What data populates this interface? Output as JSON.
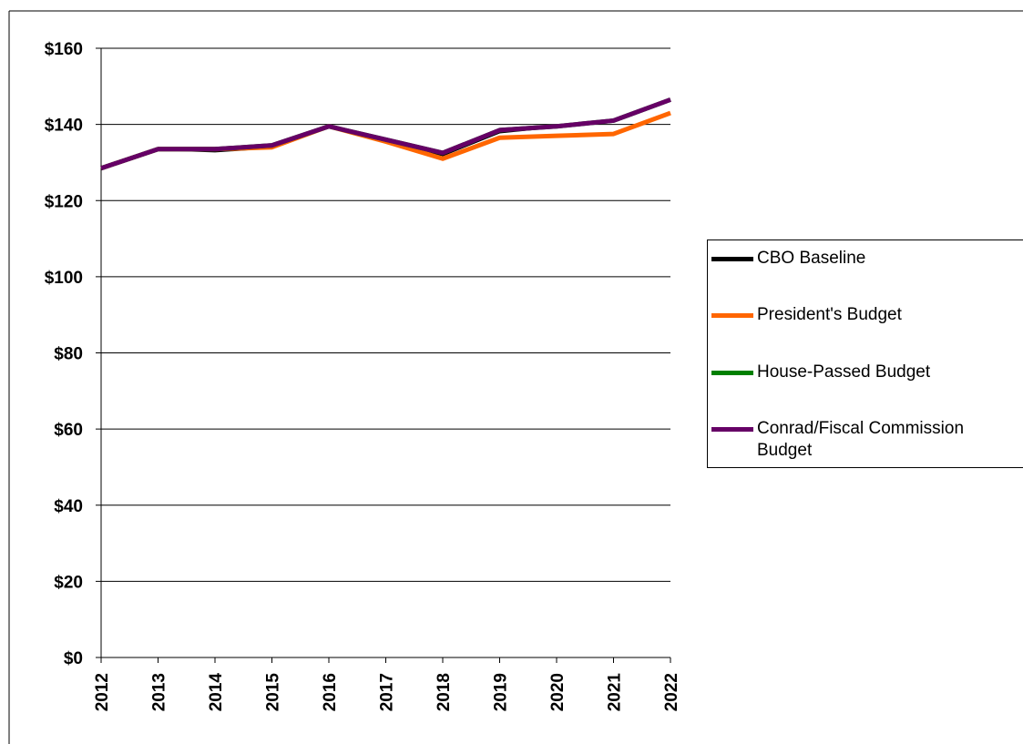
{
  "chart_data": {
    "type": "line",
    "categories": [
      "2012",
      "2013",
      "2014",
      "2015",
      "2016",
      "2017",
      "2018",
      "2019",
      "2020",
      "2021",
      "2022"
    ],
    "series": [
      {
        "name": "CBO Baseline",
        "color": "#000000",
        "values": [
          128.5,
          133.5,
          133,
          134,
          139.5,
          136,
          132,
          138,
          139.5,
          141,
          146.5
        ]
      },
      {
        "name": "President's Budget",
        "color": "#ff6600",
        "values": [
          128.5,
          133.5,
          133.5,
          134,
          139.5,
          135.5,
          131,
          136.5,
          137,
          137.5,
          143
        ]
      },
      {
        "name": "House-Passed Budget",
        "color": "#008000",
        "values": [
          128.5,
          133.5,
          133.5,
          134.5,
          139.5,
          136,
          132.5,
          138.5,
          139.5,
          141,
          146.5
        ]
      },
      {
        "name": "Conrad/Fiscal Commission Budget",
        "color": "#660066",
        "values": [
          128.5,
          133.5,
          133.5,
          134.5,
          139.5,
          136,
          132.5,
          138.5,
          139.5,
          141,
          146.5
        ]
      }
    ],
    "ylim": [
      0,
      160
    ],
    "yticks": [
      {
        "value": 0,
        "label": "$0"
      },
      {
        "value": 20,
        "label": "$20"
      },
      {
        "value": 40,
        "label": "$40"
      },
      {
        "value": 60,
        "label": "$60"
      },
      {
        "value": 80,
        "label": "$80"
      },
      {
        "value": 100,
        "label": "$100"
      },
      {
        "value": 120,
        "label": "$120"
      },
      {
        "value": 140,
        "label": "$140"
      },
      {
        "value": 160,
        "label": "$160"
      }
    ],
    "grid": true
  }
}
